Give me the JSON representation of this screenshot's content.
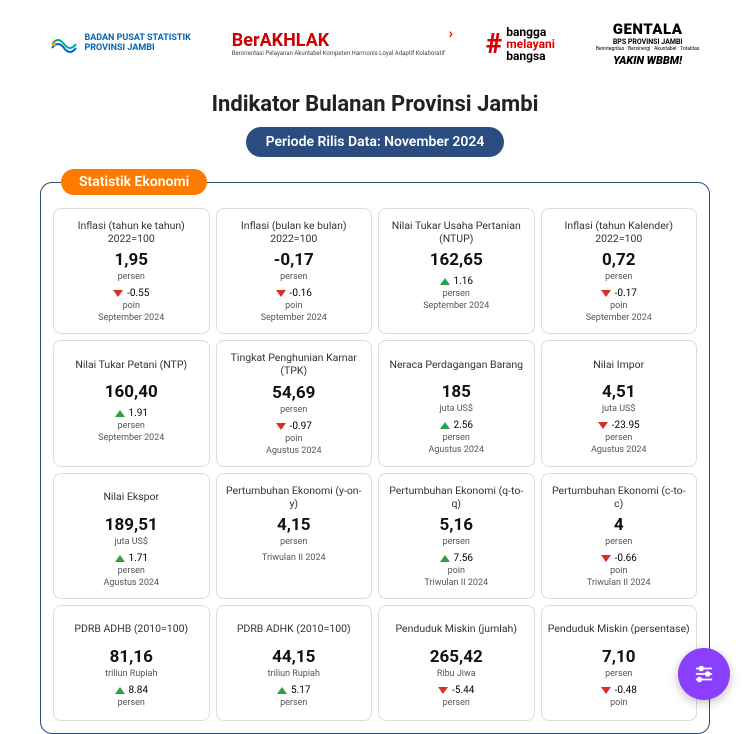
{
  "colors": {
    "accent": "#2b4c7e",
    "section": "#ff7a00",
    "up": "#2ea043",
    "down": "#d93025",
    "fab": "#8a3ffc"
  },
  "logos": {
    "bps_line1": "BADAN PUSAT STATISTIK",
    "bps_line2": "PROVINSI JAMBI",
    "berakhlak": "BerAKHLAK",
    "berakhlak_sub": "Berorientasi Pelayanan Akuntabel Kompeten Harmonis Loyal Adaptif Kolaboratif",
    "bangga_l1": "bangga",
    "bangga_l2": "melayani",
    "bangga_l3": "bangsa",
    "gentala_l1": "GENTALA",
    "gentala_l2": "BPS PROVINSI JAMBI",
    "gentala_l3": "Berintegritas · Bersinergi · Akuntabel · Totalitas",
    "gentala_l4": "YAKIN WBBM!"
  },
  "header": {
    "title": "Indikator Bulanan Provinsi Jambi",
    "subtitle": "Periode Rilis Data: November 2024"
  },
  "section_label": "Statistik Ekonomi",
  "cards": [
    {
      "title": "Inflasi (tahun ke tahun) 2022=100",
      "value": "1,95",
      "unit": "persen",
      "dir": "down",
      "delta": "-0.55",
      "delta_unit": "poin",
      "period": "September 2024"
    },
    {
      "title": "Inflasi (bulan ke bulan) 2022=100",
      "value": "-0,17",
      "unit": "persen",
      "dir": "down",
      "delta": "-0.16",
      "delta_unit": "poin",
      "period": "September 2024"
    },
    {
      "title": "Nilai Tukar Usaha Pertanian (NTUP)",
      "value": "162,65",
      "unit": "",
      "dir": "up",
      "delta": "1.16",
      "delta_unit": "persen",
      "period": "September 2024"
    },
    {
      "title": "Inflasi (tahun Kalender) 2022=100",
      "value": "0,72",
      "unit": "persen",
      "dir": "down",
      "delta": "-0.17",
      "delta_unit": "poin",
      "period": "September 2024"
    },
    {
      "title": "Nilai Tukar Petani (NTP)",
      "value": "160,40",
      "unit": "",
      "dir": "up",
      "delta": "1.91",
      "delta_unit": "persen",
      "period": "September 2024"
    },
    {
      "title": "Tingkat Penghunian Kamar (TPK)",
      "value": "54,69",
      "unit": "persen",
      "dir": "down",
      "delta": "-0.97",
      "delta_unit": "poin",
      "period": "Agustus 2024"
    },
    {
      "title": "Neraca Perdagangan Barang",
      "value": "185",
      "unit": "juta US$",
      "dir": "up",
      "delta": "2.56",
      "delta_unit": "persen",
      "period": "Agustus 2024"
    },
    {
      "title": "Nilai Impor",
      "value": "4,51",
      "unit": "juta US$",
      "dir": "down",
      "delta": "-23.95",
      "delta_unit": "persen",
      "period": "Agustus 2024"
    },
    {
      "title": "Nilai Ekspor",
      "value": "189,51",
      "unit": "juta US$",
      "dir": "up",
      "delta": "1.71",
      "delta_unit": "persen",
      "period": "Agustus 2024"
    },
    {
      "title": "Pertumbuhan Ekonomi (y-on-y)",
      "value": "4,15",
      "unit": "persen",
      "dir": "",
      "delta": "",
      "delta_unit": "",
      "period": "Triwulan II 2024"
    },
    {
      "title": "Pertumbuhan Ekonomi (q-to-q)",
      "value": "5,16",
      "unit": "persen",
      "dir": "up",
      "delta": "7.56",
      "delta_unit": "poin",
      "period": "Triwulan II 2024"
    },
    {
      "title": "Pertumbuhan Ekonomi (c-to-c)",
      "value": "4",
      "unit": "persen",
      "dir": "down",
      "delta": "-0.66",
      "delta_unit": "poin",
      "period": "Triwulan II 2024"
    },
    {
      "title": "PDRB ADHB (2010=100)",
      "value": "81,16",
      "unit": "triliun Rupiah",
      "dir": "up",
      "delta": "8.84",
      "delta_unit": "persen",
      "period": ""
    },
    {
      "title": "PDRB ADHK (2010=100)",
      "value": "44,15",
      "unit": "triliun Rupiah",
      "dir": "up",
      "delta": "5.17",
      "delta_unit": "persen",
      "period": ""
    },
    {
      "title": "Penduduk Miskin (jumlah)",
      "value": "265,42",
      "unit": "Ribu Jiwa",
      "dir": "down",
      "delta": "-5.44",
      "delta_unit": "persen",
      "period": ""
    },
    {
      "title": "Penduduk Miskin (persentase)",
      "value": "7,10",
      "unit": "persen",
      "dir": "down",
      "delta": "-0.48",
      "delta_unit": "poin",
      "period": ""
    }
  ]
}
